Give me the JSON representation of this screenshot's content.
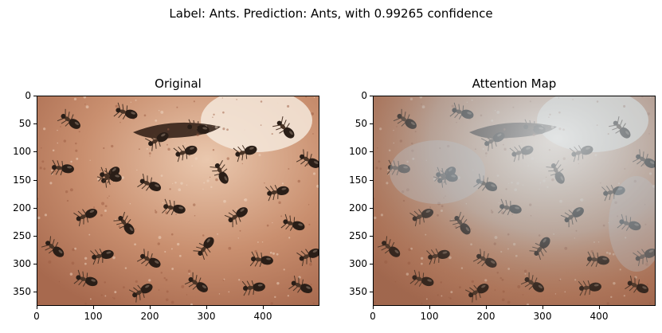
{
  "figure": {
    "suptitle": "Label: Ants. Prediction: Ants, with 0.99265 confidence",
    "panels": [
      {
        "title": "Original",
        "image_desc": "ant-colony-photo",
        "x_ticks": [
          "0",
          "100",
          "200",
          "300",
          "400"
        ],
        "y_ticks": [
          "0",
          "50",
          "100",
          "150",
          "200",
          "250",
          "300",
          "350"
        ]
      },
      {
        "title": "Attention Map",
        "image_desc": "ant-colony-photo-with-attention-overlay",
        "x_ticks": [
          "0",
          "100",
          "200",
          "300",
          "400"
        ],
        "y_ticks": [
          "0",
          "50",
          "100",
          "150",
          "200",
          "250",
          "300",
          "350"
        ]
      }
    ]
  },
  "colors": {
    "ground": "#c98f6f",
    "ground_light": "#eac8ae",
    "ant_dark": "#2a1e17",
    "ant_mid": "#4a3426",
    "overlay_blue": "#9fb3bf"
  }
}
